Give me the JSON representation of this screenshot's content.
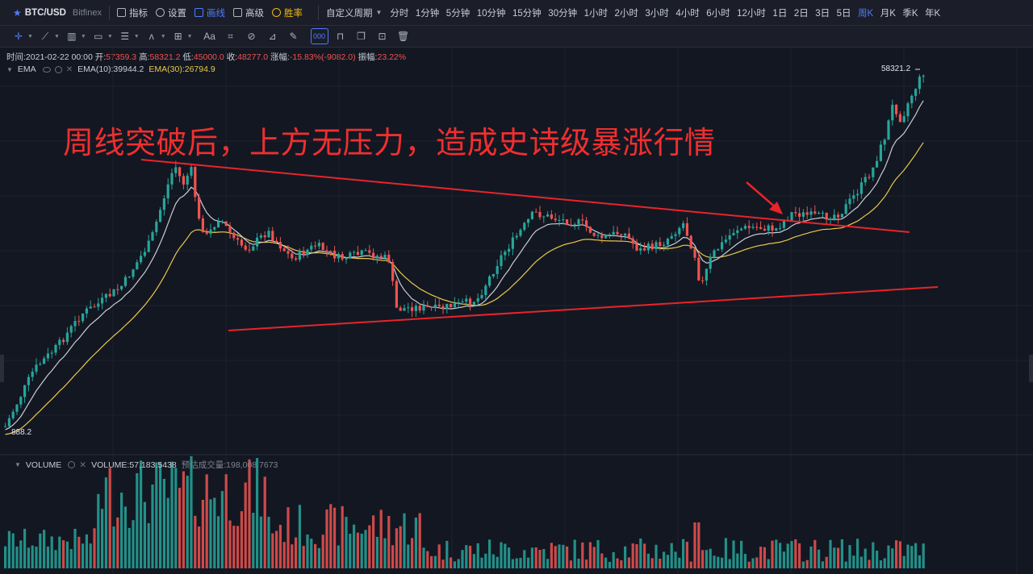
{
  "header": {
    "symbol": "BTC/USD",
    "exchange": "Bitfinex",
    "menu": [
      {
        "label": "指标",
        "icon": "indicator-icon",
        "state": "normal"
      },
      {
        "label": "设置",
        "icon": "gear-icon",
        "state": "normal"
      },
      {
        "label": "画线",
        "icon": "pencil-icon",
        "state": "active"
      },
      {
        "label": "高级",
        "icon": "advanced-icon",
        "state": "normal"
      },
      {
        "label": "胜率",
        "icon": "winrate-icon",
        "state": "gold"
      }
    ],
    "custom_period_label": "自定义周期",
    "intervals": [
      "分时",
      "1分钟",
      "5分钟",
      "10分钟",
      "15分钟",
      "30分钟",
      "1小时",
      "2小时",
      "3小时",
      "4小时",
      "6小时",
      "12小时",
      "1日",
      "2日",
      "3日",
      "5日",
      "周K",
      "月K",
      "季K",
      "年K"
    ],
    "active_interval": "周K"
  },
  "drawing_tools": [
    {
      "name": "crosshair-tool-icon",
      "glyph": "✛"
    },
    {
      "name": "trend-line-tool-icon",
      "glyph": "⟋"
    },
    {
      "name": "parallel-lines-tool-icon",
      "glyph": "▥"
    },
    {
      "name": "rectangle-tool-icon",
      "glyph": "▭"
    },
    {
      "name": "fib-tool-icon",
      "glyph": "☰"
    },
    {
      "name": "wave-tool-icon",
      "glyph": "ʌ"
    },
    {
      "name": "measure-tool-icon",
      "glyph": "⊞"
    },
    {
      "name": "text-tool-icon",
      "glyph": "Aa"
    },
    {
      "name": "pattern-tool-icon",
      "glyph": "⌗"
    },
    {
      "name": "magnet-tool-icon",
      "glyph": "⊘"
    },
    {
      "name": "ruler-tool-icon",
      "glyph": "⊿"
    },
    {
      "name": "brush-tool-icon",
      "glyph": "✎"
    },
    {
      "name": "group-select-tool-icon",
      "glyph": "000"
    },
    {
      "name": "lock-tool-icon",
      "glyph": "⊓"
    },
    {
      "name": "copy-tool-icon",
      "glyph": "❐"
    },
    {
      "name": "hide-tool-icon",
      "glyph": "⊡"
    },
    {
      "name": "trash-tool-icon",
      "glyph": "🗑"
    }
  ],
  "info_bar": {
    "time_label": "时间:",
    "time": "2021-02-22 00:00",
    "open_label": "开:",
    "open": "57359.3",
    "high_label": "高:",
    "high": "58321.2",
    "low_label": "低:",
    "low": "45000.0",
    "close_label": "收:",
    "close": "48277.0",
    "change_label": "涨幅:",
    "change": "-15.83%(-9082.0)",
    "amplitude_label": "振幅:",
    "amplitude": "23.22%"
  },
  "ema_legend": {
    "name": "EMA",
    "ema10": "EMA(10):39944.2",
    "ema30": "EMA(30):26794.9"
  },
  "volume_legend": {
    "name": "VOLUME",
    "volume": "VOLUME:57,183.5438",
    "estimated": "预估成交量:198,008.7673"
  },
  "annotation": "周线突破后，上方无压力，造成史诗级暴涨行情",
  "price_labels": {
    "last_high": "58321.2",
    "left_low": "888.2"
  },
  "colors": {
    "up": "#26a69a",
    "down": "#ef5350",
    "trendline": "#e8242a",
    "ema10": "#c8ccd6",
    "ema30": "#e8c84a",
    "background": "#131722"
  }
}
